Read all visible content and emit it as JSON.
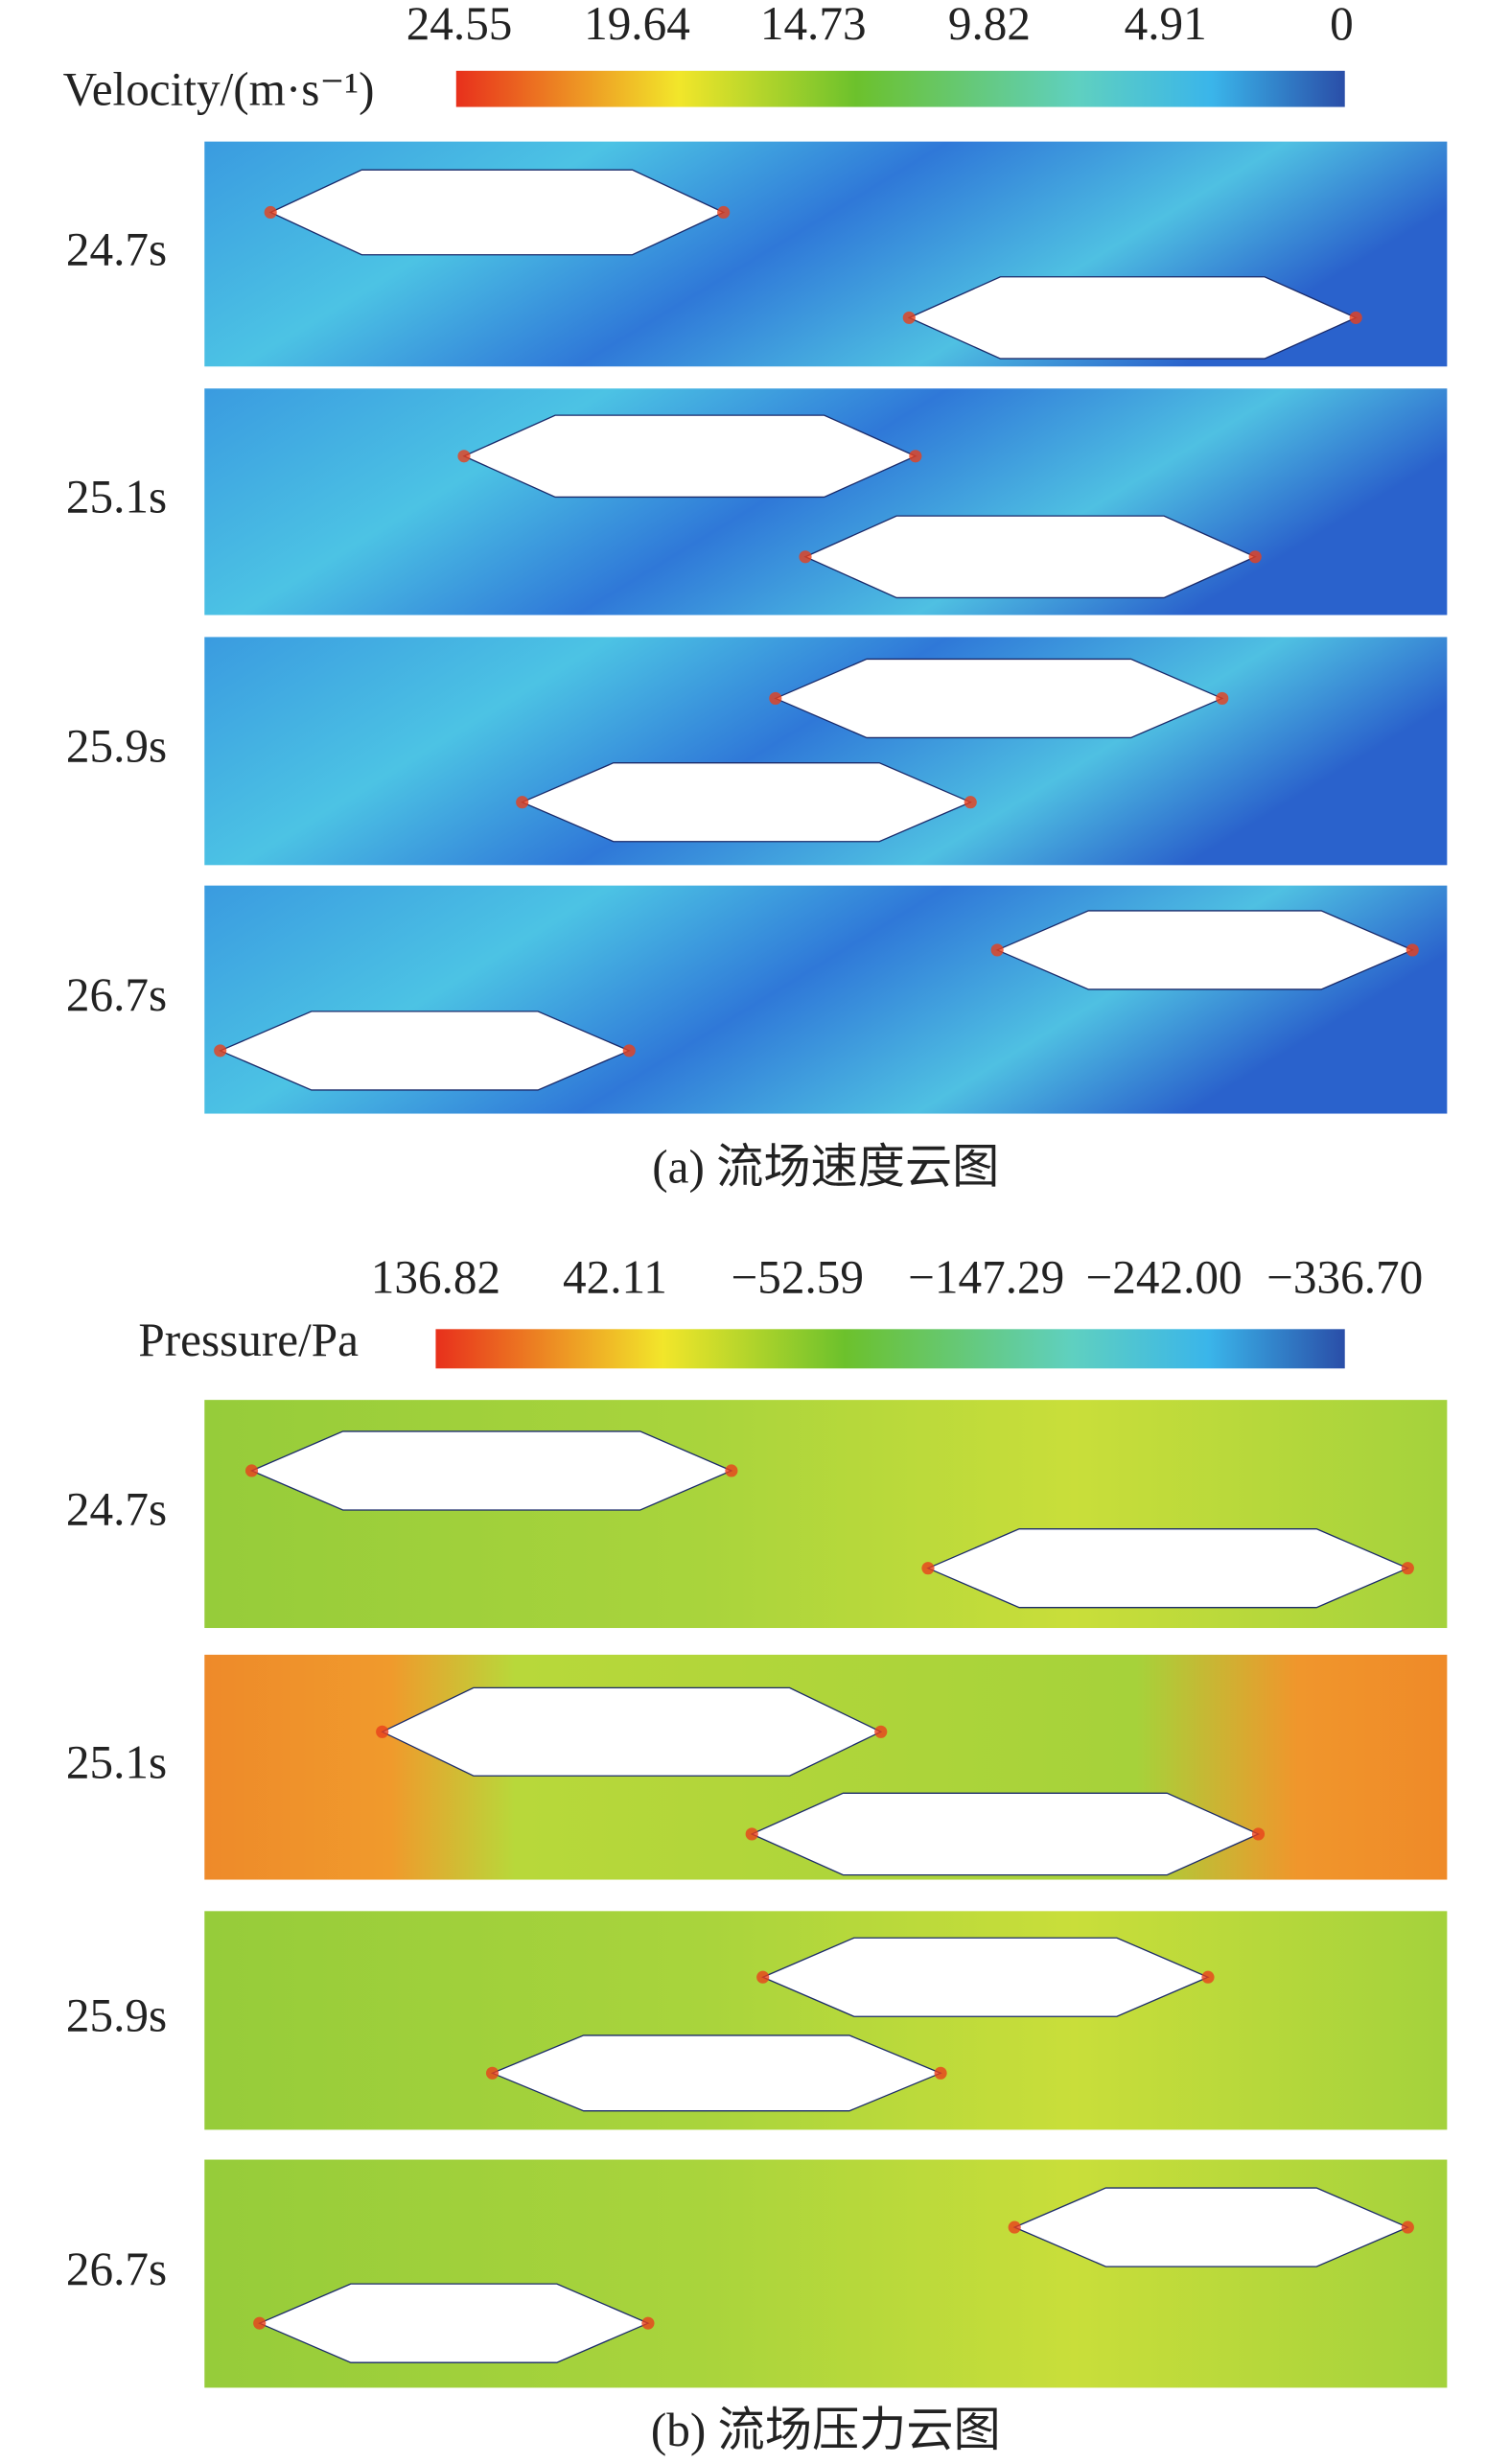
{
  "figure_a": {
    "legend_title": "Velocity/(m·s⁻¹)",
    "colorbar_ticks": [
      "24.55",
      "19.64",
      "14.73",
      "9.82",
      "4.91",
      "0"
    ],
    "times": [
      "24.7s",
      "25.1s",
      "25.9s",
      "26.7s"
    ],
    "caption": "(a) 流场速度云图"
  },
  "figure_b": {
    "legend_title": "Pressure/Pa",
    "colorbar_ticks": [
      "136.82",
      "42.11",
      "−52.59",
      "−147.29",
      "−242.00",
      "−336.70"
    ],
    "times": [
      "24.7s",
      "25.1s",
      "25.9s",
      "26.7s"
    ],
    "caption": "(b) 流场压力云图"
  }
}
